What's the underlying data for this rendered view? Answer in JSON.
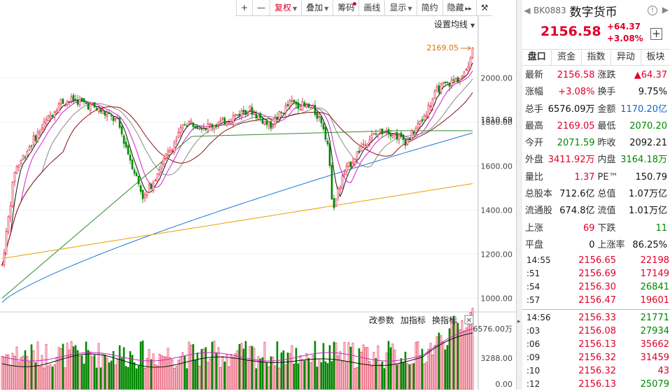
{
  "toolbar": {
    "plus": "+",
    "minus": "—",
    "fuquan": "复权",
    "diejia": "叠加",
    "chouma": "筹码",
    "huaxian": "画线",
    "xianshi": "显示",
    "jianyue": "简约",
    "yincang": "隐藏",
    "collapse": "▸▸",
    "tools": "⚒"
  },
  "chart": {
    "settings_label": "设置均线",
    "high_label": "2169.05",
    "price_axis": [
      "2000.00",
      "1800.00",
      "1600.00",
      "1400.00",
      "1200.00",
      "1000.00"
    ],
    "current_axis_label": "1810.69",
    "volume_axis": [
      "6576.00万",
      "3288.00",
      "0.00"
    ],
    "buttons": {
      "change_params": "改参数",
      "add_indicator": "加指标",
      "switch_indicator": "换指标"
    },
    "close_icon": "×"
  },
  "panel": {
    "code": "BK0883",
    "name": "数字货币",
    "price": "2156.58",
    "change": "+64.37",
    "change_pct": "+3.08%",
    "tabs": [
      "盘口",
      "资金",
      "指数",
      "异动",
      "板块"
    ],
    "stats": [
      [
        {
          "label": "最新",
          "value": "2156.58",
          "color": "red"
        },
        {
          "label": "涨跌",
          "value": "▲64.37",
          "color": "red"
        }
      ],
      [
        {
          "label": "涨幅",
          "value": "+3.08%",
          "color": "red"
        },
        {
          "label": "换手",
          "value": "9.75%",
          "color": "blk"
        }
      ],
      [
        {
          "label": "总手",
          "value": "6576.09万",
          "color": "blk"
        },
        {
          "label": "金额",
          "value": "1170.20亿",
          "color": "blue"
        }
      ],
      [
        {
          "label": "最高",
          "value": "2169.05",
          "color": "red"
        },
        {
          "label": "最低",
          "value": "2070.20",
          "color": "green"
        }
      ],
      [
        {
          "label": "今开",
          "value": "2071.59",
          "color": "green"
        },
        {
          "label": "昨收",
          "value": "2092.21",
          "color": "blk"
        }
      ],
      [
        {
          "label": "外盘",
          "value": "3411.92万",
          "color": "red"
        },
        {
          "label": "内盘",
          "value": "3164.18万",
          "color": "green"
        }
      ],
      [
        {
          "label": "量比",
          "value": "1.37",
          "color": "red"
        },
        {
          "label": "PE™",
          "value": "150.79",
          "color": "blk"
        }
      ],
      [
        {
          "label": "总股本",
          "value": "712.6亿",
          "color": "blk"
        },
        {
          "label": "总值",
          "value": "1.07万亿",
          "color": "blk"
        }
      ],
      [
        {
          "label": "流通股",
          "value": "674.8亿",
          "color": "blk"
        },
        {
          "label": "流值",
          "value": "1.01万亿",
          "color": "blk"
        }
      ],
      [
        {
          "label": "上涨",
          "value": "69",
          "color": "red"
        },
        {
          "label": "下跌",
          "value": "11",
          "color": "green"
        }
      ],
      [
        {
          "label": "平盘",
          "value": "0",
          "color": "blk"
        },
        {
          "label": "上涨率",
          "value": "86.25%",
          "color": "blk"
        }
      ]
    ],
    "ticks": [
      {
        "time": "14:55",
        "price": "2156.65",
        "vol": "22198",
        "dir": "up"
      },
      {
        "time": ":51",
        "price": "2156.69",
        "vol": "17149",
        "dir": "up"
      },
      {
        "time": ":54",
        "price": "2156.30",
        "vol": "26841",
        "dir": "down"
      },
      {
        "time": ":57",
        "price": "2156.47",
        "vol": "19601",
        "dir": "up"
      },
      {
        "time": "14:56",
        "price": "2156.33",
        "vol": "21771",
        "dir": "down"
      },
      {
        "time": ":03",
        "price": "2156.08",
        "vol": "27934",
        "dir": "down"
      },
      {
        "time": ":06",
        "price": "2156.13",
        "vol": "35662",
        "dir": "up"
      },
      {
        "time": ":09",
        "price": "2156.32",
        "vol": "31459",
        "dir": "up"
      },
      {
        "time": ":10",
        "price": "2156.32",
        "vol": "43",
        "dir": "up"
      },
      {
        "time": ":12",
        "price": "2156.13",
        "vol": "25079",
        "dir": "down"
      }
    ]
  },
  "colors": {
    "up": "#e0002a",
    "down": "#008800",
    "ma_yellow": "#e8a000",
    "ma_blue": "#1f78d1",
    "ma_green": "#2e8b2e",
    "ma_dark": "#8b1010",
    "ma_magenta": "#cc22cc",
    "ma_black": "#111111"
  }
}
